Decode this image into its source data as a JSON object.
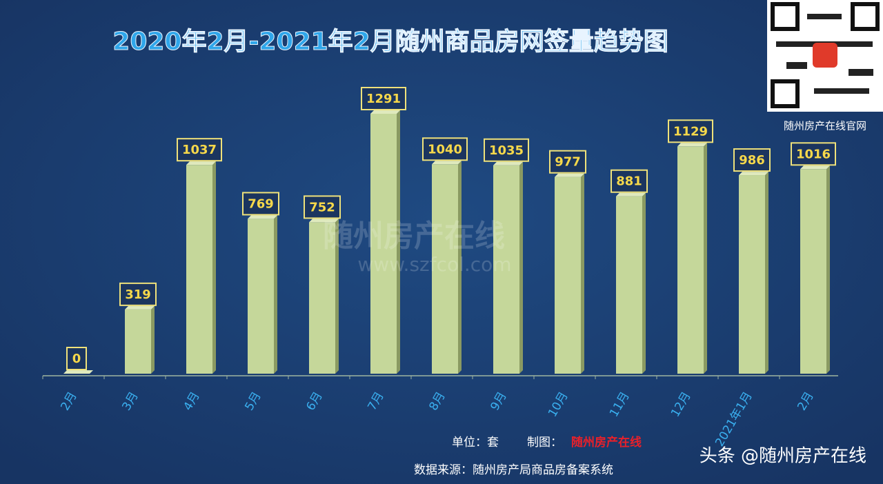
{
  "chart_data": {
    "type": "bar",
    "title": "2020年2月-2021年2月随州商品房网签量趋势图",
    "categories": [
      "2月",
      "3月",
      "4月",
      "5月",
      "6月",
      "7月",
      "8月",
      "9月",
      "10月",
      "11月",
      "12月",
      "2021年1月",
      "2月"
    ],
    "values": [
      0,
      319,
      1037,
      769,
      752,
      1291,
      1040,
      1035,
      977,
      881,
      1129,
      986,
      1016
    ],
    "color": "#c5d79a",
    "watermark": "随州房产在线",
    "watermark_url": "www.szfcol.com",
    "qr_caption": "随州房产在线官网",
    "unit": "单位：套",
    "maker_label": "制图：",
    "maker": "随州房产在线",
    "source": "数据来源：随州房产局商品房备案系统",
    "credit": "头条 @随州房产在线"
  }
}
